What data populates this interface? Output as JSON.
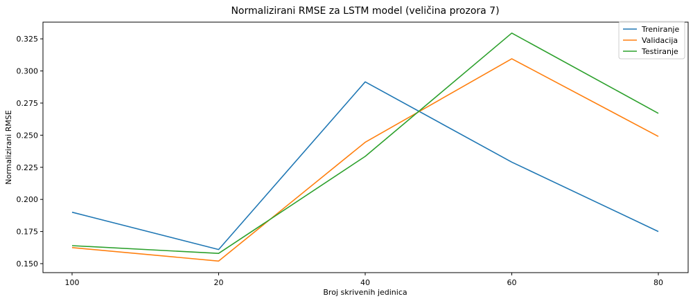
{
  "chart_data": {
    "type": "line",
    "title": "Normalizirani RMSE za LSTM model (veličina prozora 7)",
    "xlabel": "Broj skrivenih jedinica",
    "ylabel": "Normalizirani RMSE",
    "categories": [
      "100",
      "20",
      "40",
      "60",
      "80"
    ],
    "ylim": [
      0.143,
      0.338
    ],
    "yticks": [
      "0.150",
      "0.175",
      "0.200",
      "0.225",
      "0.250",
      "0.275",
      "0.300",
      "0.325"
    ],
    "grid": false,
    "legend_position": "top-right",
    "series": [
      {
        "name": "Treniranje",
        "color": "#1f77b4",
        "values": [
          0.19,
          0.161,
          0.2915,
          0.229,
          0.175
        ]
      },
      {
        "name": "Validacija",
        "color": "#ff7f0e",
        "values": [
          0.1625,
          0.152,
          0.2445,
          0.3095,
          0.249
        ]
      },
      {
        "name": "Testiranje",
        "color": "#2ca02c",
        "values": [
          0.164,
          0.158,
          0.2335,
          0.3295,
          0.267
        ]
      }
    ]
  }
}
